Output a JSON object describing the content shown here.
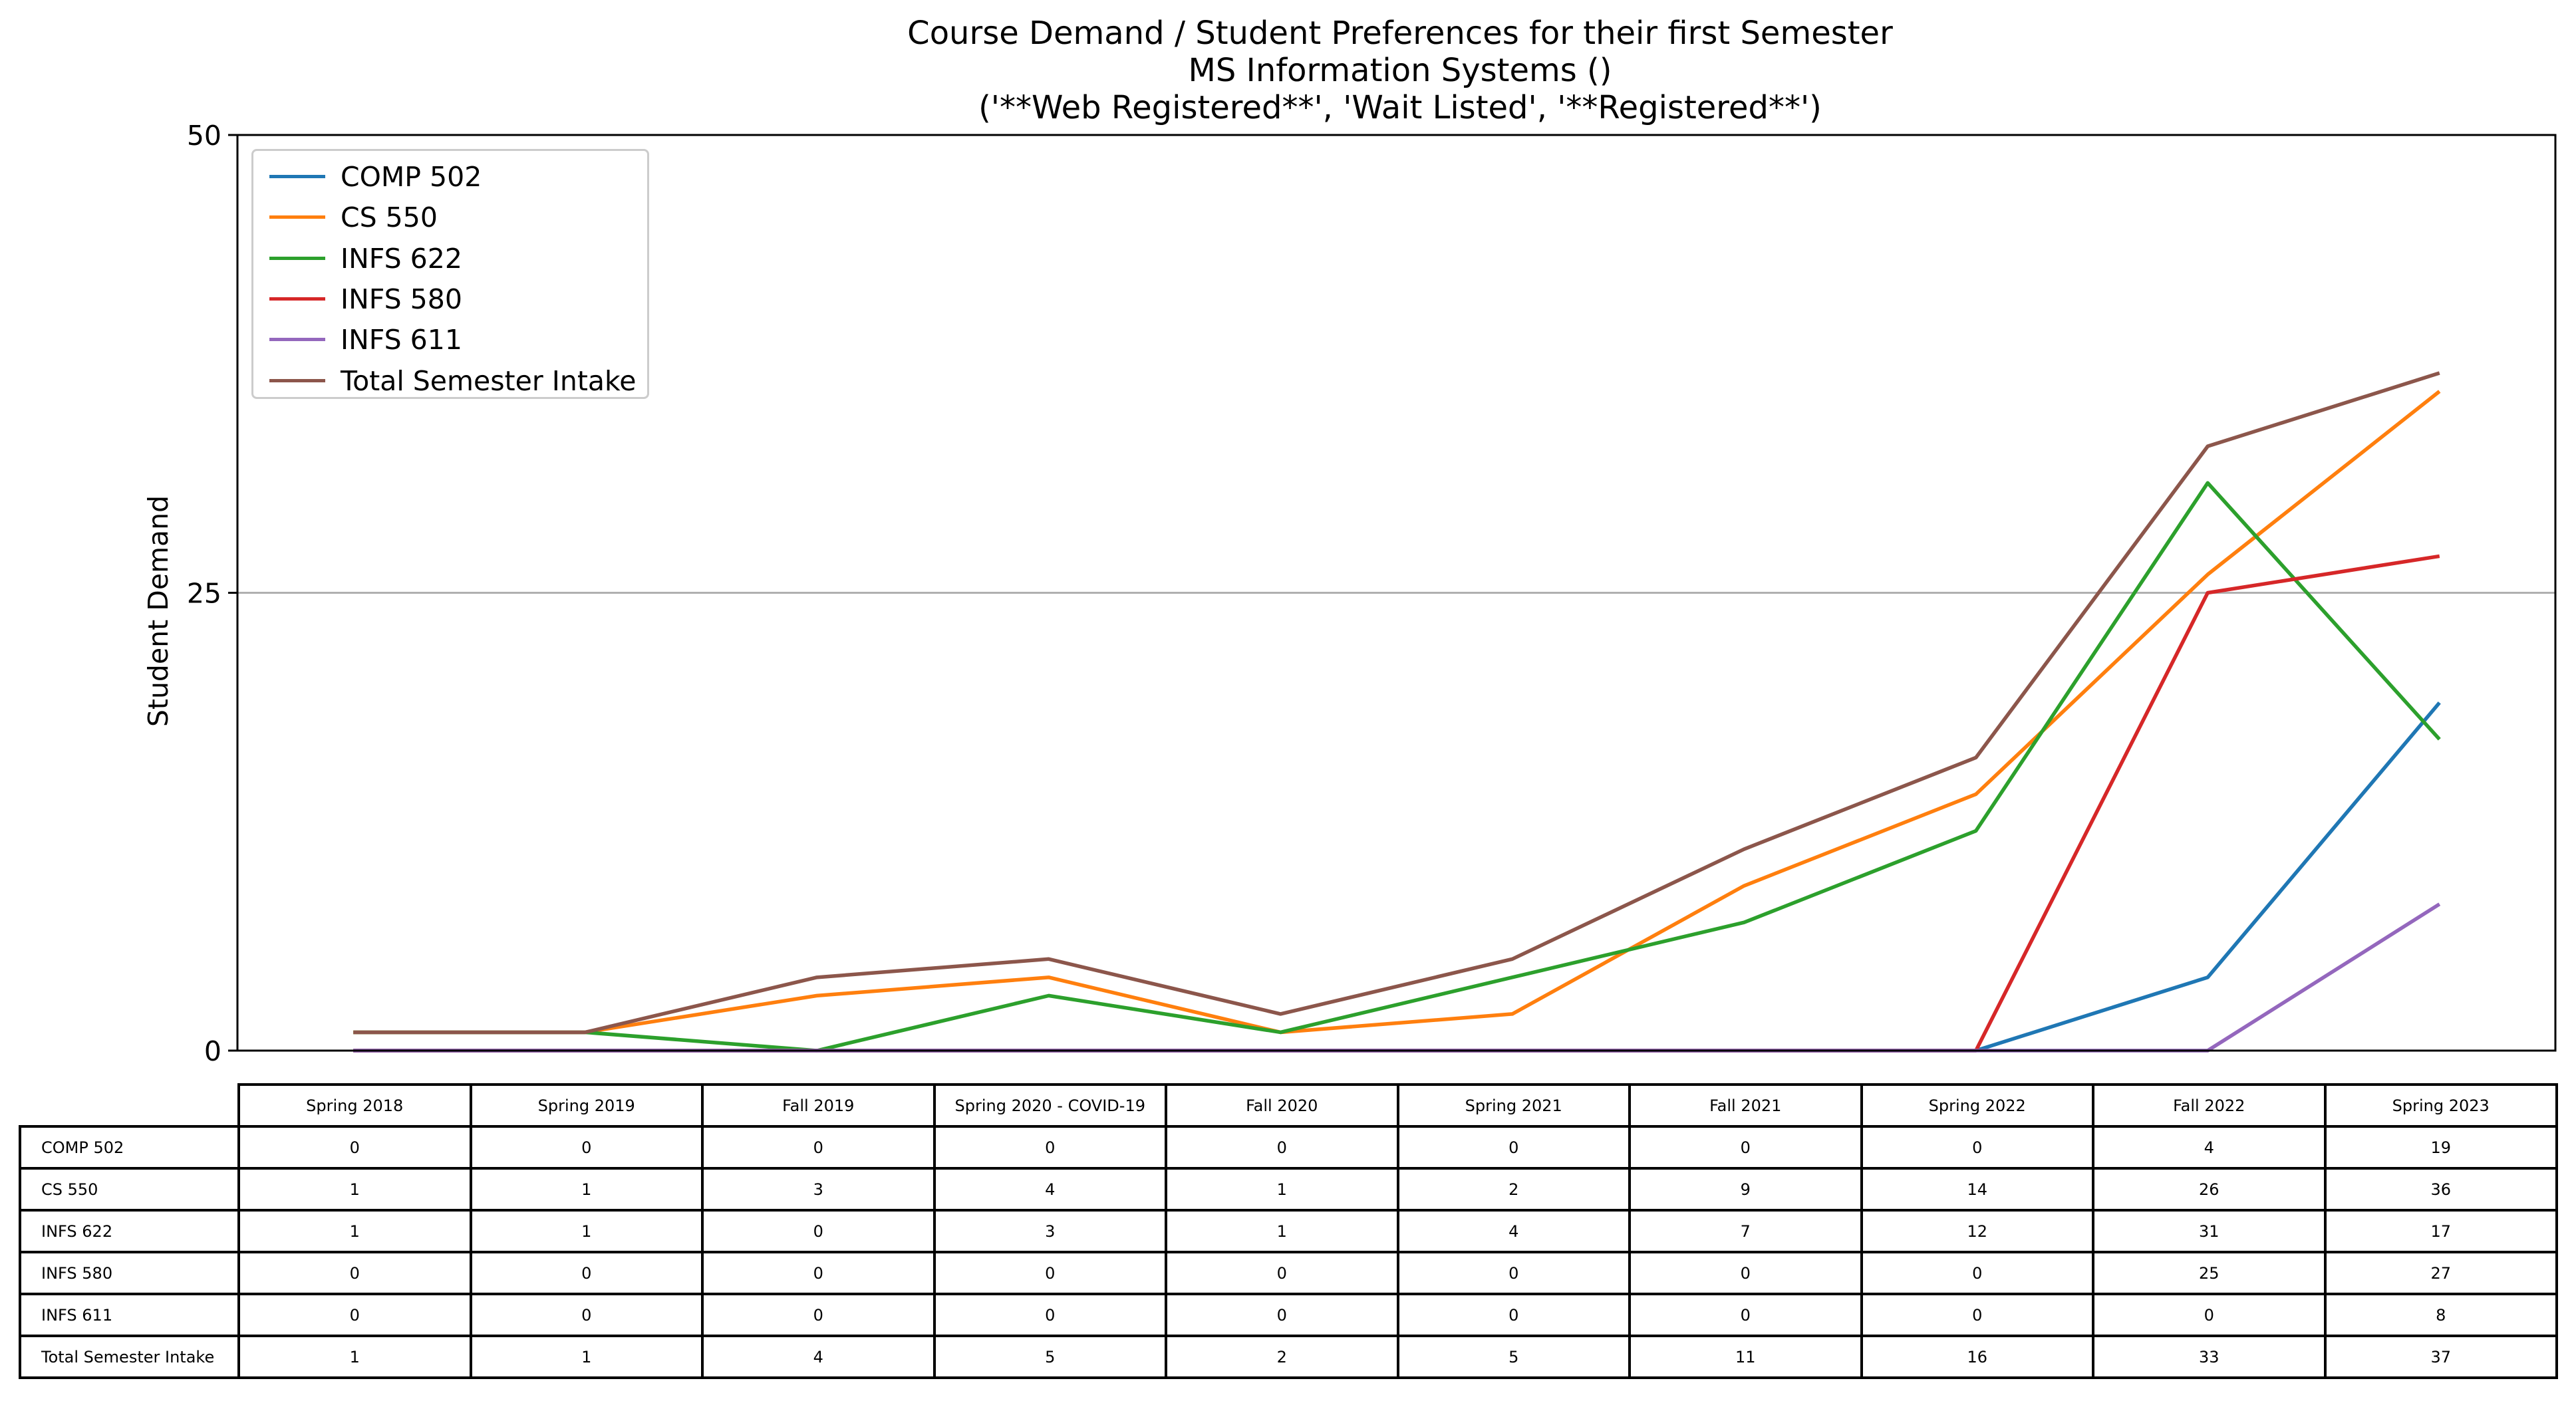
{
  "title_lines": [
    "Course Demand / Student Preferences for their first Semester",
    "MS Information Systems ()",
    "('**Web Registered**', 'Wait Listed', '**Registered**')"
  ],
  "chart_data": {
    "type": "line",
    "ylabel": "Student Demand",
    "xlabel": "",
    "ylim": [
      0,
      50
    ],
    "yticks": [
      "0",
      "25",
      "50"
    ],
    "ytick_values": [
      0,
      25,
      50
    ],
    "grid": "horizontal at 25",
    "legend_position": "upper-left",
    "categories": [
      "Spring 2018",
      "Spring 2019",
      "Fall 2019",
      "Spring 2020 - COVID-19",
      "Fall 2020",
      "Spring 2021",
      "Fall 2021",
      "Spring 2022",
      "Fall 2022",
      "Spring 2023"
    ],
    "series": [
      {
        "name": "COMP 502",
        "color": "#1f77b4",
        "values": [
          0,
          0,
          0,
          0,
          0,
          0,
          0,
          0,
          4,
          19
        ]
      },
      {
        "name": "CS 550",
        "color": "#ff7f0e",
        "values": [
          1,
          1,
          3,
          4,
          1,
          2,
          9,
          14,
          26,
          36
        ]
      },
      {
        "name": "INFS 622",
        "color": "#2ca02c",
        "values": [
          1,
          1,
          0,
          3,
          1,
          4,
          7,
          12,
          31,
          17
        ]
      },
      {
        "name": "INFS 580",
        "color": "#d62728",
        "values": [
          0,
          0,
          0,
          0,
          0,
          0,
          0,
          0,
          25,
          27
        ]
      },
      {
        "name": "INFS 611",
        "color": "#9467bd",
        "values": [
          0,
          0,
          0,
          0,
          0,
          0,
          0,
          0,
          0,
          8
        ]
      },
      {
        "name": "Total Semester Intake",
        "color": "#8c564b",
        "values": [
          1,
          1,
          4,
          5,
          2,
          5,
          11,
          16,
          33,
          37
        ]
      }
    ]
  }
}
